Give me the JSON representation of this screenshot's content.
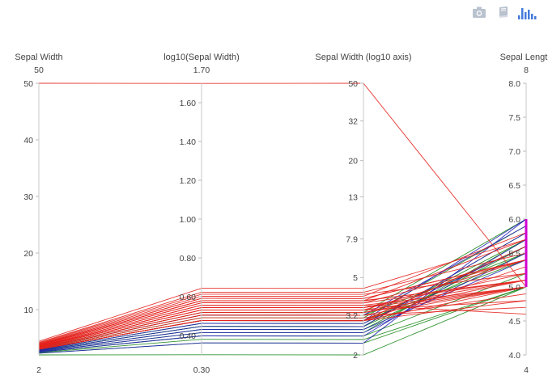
{
  "modebar": {
    "buttons": [
      {
        "name": "download-plot-button",
        "icon": "camera-icon"
      },
      {
        "name": "edit-in-chart-studio-button",
        "icon": "book-icon"
      },
      {
        "name": "plotly-logo-button",
        "icon": "bar-chart-icon"
      }
    ],
    "icon_color": "#b9c2cf",
    "logo_color": "#447adb"
  },
  "chart_data": {
    "type": "parallel-coordinates",
    "colors": {
      "red": "#e3211c",
      "green": "#1d8a1d",
      "blue": "#1f1fb4",
      "gray": "#9a9a9a",
      "brush": "#d000d0"
    },
    "dimensions": [
      {
        "label": "Sepal Width",
        "range": [
          2,
          50
        ],
        "range_labels": [
          "50",
          "2"
        ],
        "ticks": [
          {
            "v": 10,
            "t": "10"
          },
          {
            "v": 20,
            "t": "20"
          },
          {
            "v": 30,
            "t": "30"
          },
          {
            "v": 40,
            "t": "40"
          },
          {
            "v": 50,
            "t": "50"
          }
        ]
      },
      {
        "label": "log10(Sepal Width)",
        "range": [
          0.3,
          1.7
        ],
        "range_labels": [
          "1.70",
          "0.30"
        ],
        "ticks": [
          {
            "v": 0.4,
            "t": "0.40"
          },
          {
            "v": 0.6,
            "t": "0.60"
          },
          {
            "v": 0.8,
            "t": "0.80"
          },
          {
            "v": 1.0,
            "t": "1.00"
          },
          {
            "v": 1.2,
            "t": "1.20"
          },
          {
            "v": 1.4,
            "t": "1.40"
          },
          {
            "v": 1.6,
            "t": "1.60"
          }
        ]
      },
      {
        "label": "Sepal Width (log10 axis)",
        "range": [
          0.30103,
          1.69897
        ],
        "range_labels": [],
        "ticks": [
          {
            "v": 0.30103,
            "t": "2"
          },
          {
            "v": 0.5051,
            "t": "3.2"
          },
          {
            "v": 0.69897,
            "t": "5"
          },
          {
            "v": 0.89763,
            "t": "7.9"
          },
          {
            "v": 1.11394,
            "t": "13"
          },
          {
            "v": 1.30103,
            "t": "20"
          },
          {
            "v": 1.50515,
            "t": "32"
          },
          {
            "v": 1.69897,
            "t": "50"
          }
        ]
      },
      {
        "label": "Sepal Length",
        "range": [
          4,
          8
        ],
        "range_labels": [
          "8",
          "4"
        ],
        "ticks": [
          {
            "v": 4.0,
            "t": "4.0"
          },
          {
            "v": 4.5,
            "t": "4.5"
          },
          {
            "v": 5.0,
            "t": "5.0"
          },
          {
            "v": 5.5,
            "t": "5.5"
          },
          {
            "v": 6.0,
            "t": "6.0"
          },
          {
            "v": 6.5,
            "t": "6.5"
          },
          {
            "v": 7.0,
            "t": "7.0"
          },
          {
            "v": 7.5,
            "t": "7.5"
          },
          {
            "v": 8.0,
            "t": "8.0"
          }
        ]
      }
    ],
    "brush": {
      "dimension": 3,
      "range": [
        5.0,
        6.0
      ]
    },
    "series": [
      {
        "group": "red",
        "sepal_width": 50,
        "sepal_length": 5.0
      },
      {
        "group": "red",
        "sepal_width": 4.4,
        "sepal_length": 5.7
      },
      {
        "group": "red",
        "sepal_width": 4.2,
        "sepal_length": 5.5
      },
      {
        "group": "red",
        "sepal_width": 4.1,
        "sepal_length": 5.2
      },
      {
        "group": "red",
        "sepal_width": 4.0,
        "sepal_length": 5.8
      },
      {
        "group": "red",
        "sepal_width": 3.9,
        "sepal_length": 5.4
      },
      {
        "group": "red",
        "sepal_width": 3.9,
        "sepal_length": 5.4
      },
      {
        "group": "red",
        "sepal_width": 3.8,
        "sepal_length": 5.1
      },
      {
        "group": "red",
        "sepal_width": 3.8,
        "sepal_length": 5.7
      },
      {
        "group": "red",
        "sepal_width": 3.8,
        "sepal_length": 5.1
      },
      {
        "group": "red",
        "sepal_width": 3.7,
        "sepal_length": 5.4
      },
      {
        "group": "red",
        "sepal_width": 3.7,
        "sepal_length": 5.1
      },
      {
        "group": "red",
        "sepal_width": 3.6,
        "sepal_length": 5.0
      },
      {
        "group": "red",
        "sepal_width": 3.6,
        "sepal_length": 4.6
      },
      {
        "group": "red",
        "sepal_width": 3.5,
        "sepal_length": 5.1
      },
      {
        "group": "red",
        "sepal_width": 3.5,
        "sepal_length": 5.0
      },
      {
        "group": "red",
        "sepal_width": 3.5,
        "sepal_length": 5.2
      },
      {
        "group": "red",
        "sepal_width": 3.4,
        "sepal_length": 5.4
      },
      {
        "group": "red",
        "sepal_width": 3.4,
        "sepal_length": 4.8
      },
      {
        "group": "red",
        "sepal_width": 3.4,
        "sepal_length": 5.0
      },
      {
        "group": "red",
        "sepal_width": 3.3,
        "sepal_length": 5.1
      },
      {
        "group": "red",
        "sepal_width": 3.3,
        "sepal_length": 5.0
      },
      {
        "group": "red",
        "sepal_width": 3.2,
        "sepal_length": 4.7
      },
      {
        "group": "red",
        "sepal_width": 3.2,
        "sepal_length": 5.0
      },
      {
        "group": "red",
        "sepal_width": 3.1,
        "sepal_length": 4.9
      },
      {
        "group": "red",
        "sepal_width": 3.0,
        "sepal_length": 4.8
      },
      {
        "group": "red",
        "sepal_width": 3.0,
        "sepal_length": 5.0
      },
      {
        "group": "red",
        "sepal_width": 3.0,
        "sepal_length": 5.3
      },
      {
        "group": "red",
        "sepal_width": 3.0,
        "sepal_length": 5.6
      },
      {
        "group": "green",
        "sepal_width": 3.3,
        "sepal_length": 6.0
      },
      {
        "group": "green",
        "sepal_width": 3.2,
        "sepal_length": 5.5
      },
      {
        "group": "green",
        "sepal_width": 3.1,
        "sepal_length": 5.9
      },
      {
        "group": "green",
        "sepal_width": 3.0,
        "sepal_length": 5.4
      },
      {
        "group": "green",
        "sepal_width": 3.0,
        "sepal_length": 5.6
      },
      {
        "group": "green",
        "sepal_width": 2.9,
        "sepal_length": 5.7
      },
      {
        "group": "green",
        "sepal_width": 2.8,
        "sepal_length": 5.8
      },
      {
        "group": "green",
        "sepal_width": 2.8,
        "sepal_length": 5.5
      },
      {
        "group": "green",
        "sepal_width": 2.7,
        "sepal_length": 5.6
      },
      {
        "group": "green",
        "sepal_width": 2.6,
        "sepal_length": 5.7
      },
      {
        "group": "green",
        "sepal_width": 2.5,
        "sepal_length": 5.2
      },
      {
        "group": "green",
        "sepal_width": 2.4,
        "sepal_length": 5.0
      },
      {
        "group": "green",
        "sepal_width": 2.3,
        "sepal_length": 5.0
      },
      {
        "group": "green",
        "sepal_width": 2.0,
        "sepal_length": 5.0
      },
      {
        "group": "blue",
        "sepal_width": 3.2,
        "sepal_length": 5.9
      },
      {
        "group": "blue",
        "sepal_width": 3.0,
        "sepal_length": 6.0
      },
      {
        "group": "blue",
        "sepal_width": 2.9,
        "sepal_length": 5.6
      },
      {
        "group": "blue",
        "sepal_width": 2.8,
        "sepal_length": 5.8
      },
      {
        "group": "blue",
        "sepal_width": 2.7,
        "sepal_length": 5.4
      },
      {
        "group": "blue",
        "sepal_width": 2.6,
        "sepal_length": 5.5
      },
      {
        "group": "blue",
        "sepal_width": 2.5,
        "sepal_length": 5.7
      },
      {
        "group": "blue",
        "sepal_width": 2.3,
        "sepal_length": 6.0
      }
    ]
  }
}
